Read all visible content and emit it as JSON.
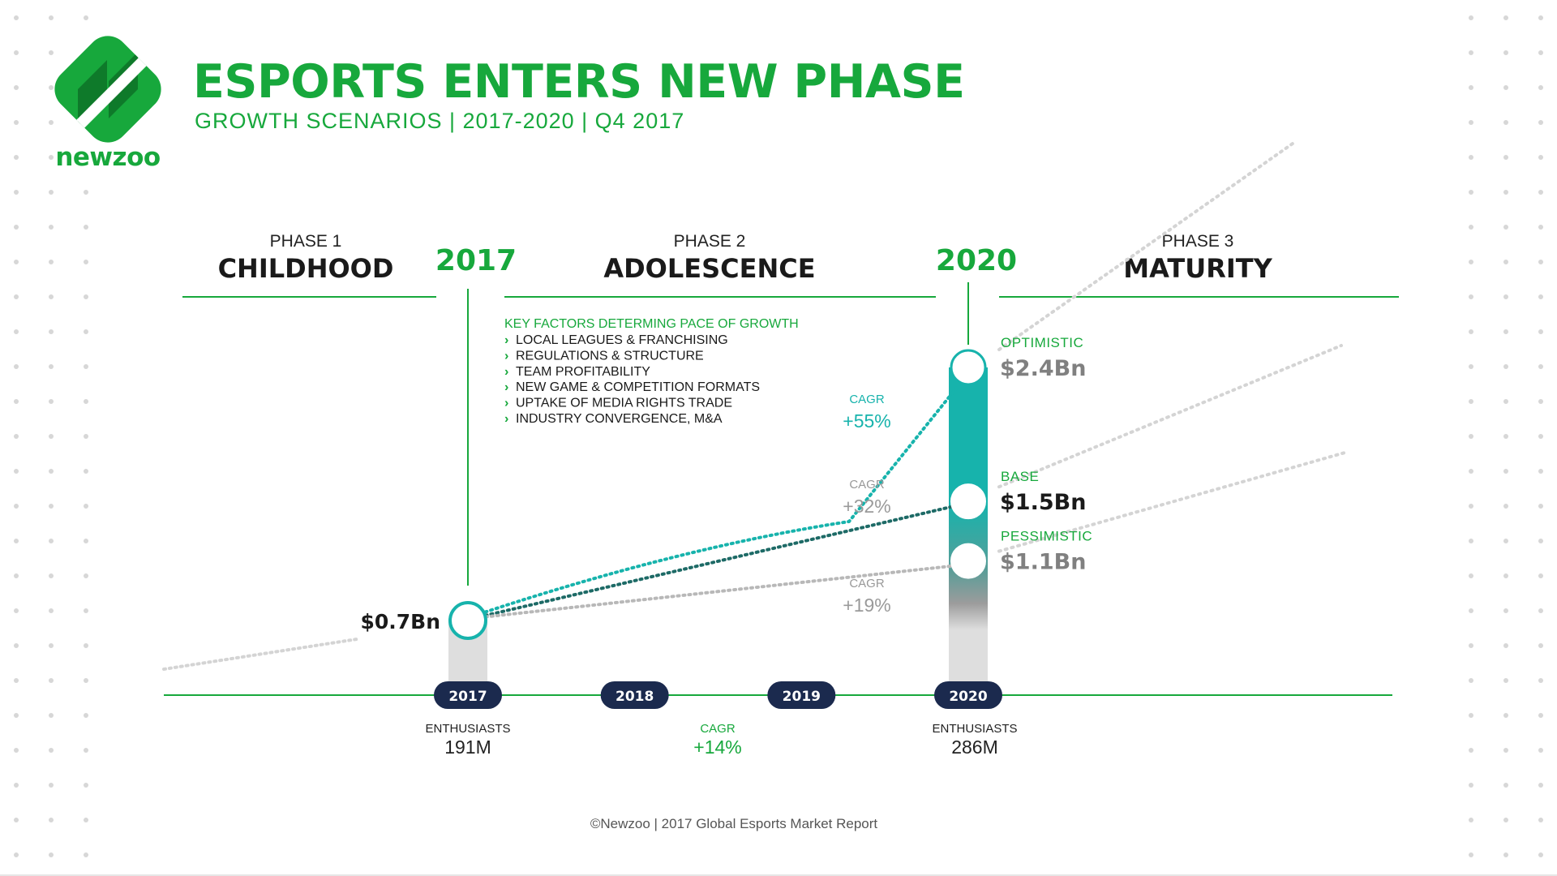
{
  "brand": {
    "name": "newzoo",
    "logo_icon": "newzoo-diamond-logo"
  },
  "header": {
    "title": "ESPORTS ENTERS NEW PHASE",
    "subtitle": "GROWTH SCENARIOS | 2017-2020 | Q4 2017"
  },
  "footer": {
    "source": "©Newzoo | 2017 Global Esports Market Report"
  },
  "colors": {
    "brand_green": "#17a83c",
    "optimistic_teal": "#17b3ac",
    "base_teal": "#1d6a66",
    "pessimistic_gray": "#b8b8b8",
    "navy": "#1b2a4e",
    "dark_text": "#1a1a1a",
    "gray_text": "#808080"
  },
  "chart_data": {
    "type": "line",
    "title": "ESPORTS ENTERS NEW PHASE",
    "subtitle": "GROWTH SCENARIOS | 2017-2020 | Q4 2017",
    "phases": [
      {
        "label": "PHASE 1",
        "name": "CHILDHOOD"
      },
      {
        "label": "PHASE 2",
        "name": "ADOLESCENCE"
      },
      {
        "label": "PHASE 3",
        "name": "MATURITY"
      }
    ],
    "milestones": [
      "2017",
      "2020"
    ],
    "x": [
      "2017",
      "2018",
      "2019",
      "2020"
    ],
    "unit": "Bn",
    "start": {
      "year": "2017",
      "value": 0.7,
      "label": "$0.7Bn"
    },
    "series": [
      {
        "name": "OPTIMISTIC",
        "value_2020": 2.4,
        "label": "$2.4Bn",
        "cagr_label": "CAGR",
        "cagr": "+55%",
        "color": "#17b3ac"
      },
      {
        "name": "BASE",
        "value_2020": 1.5,
        "label": "$1.5Bn",
        "cagr_label": "CAGR",
        "cagr": "+32%",
        "color": "#1d6a66"
      },
      {
        "name": "PESSIMISTIC",
        "value_2020": 1.1,
        "label": "$1.1Bn",
        "cagr_label": "CAGR",
        "cagr": "+19%",
        "color": "#b8b8b8"
      }
    ],
    "key_factors": {
      "heading": "KEY FACTORS DETERMING PACE OF GROWTH",
      "items": [
        "LOCAL LEAGUES & FRANCHISING",
        "REGULATIONS & STRUCTURE",
        "TEAM PROFITABILITY",
        "NEW GAME & COMPETITION FORMATS",
        "UPTAKE OF MEDIA RIGHTS TRADE",
        "INDUSTRY CONVERGENCE, M&A"
      ]
    },
    "enthusiasts": {
      "label": "ENTHUSIASTS",
      "start": {
        "year": "2017",
        "value": "191M"
      },
      "end": {
        "year": "2020",
        "value": "286M"
      },
      "cagr_label": "CAGR",
      "cagr": "+14%"
    }
  }
}
